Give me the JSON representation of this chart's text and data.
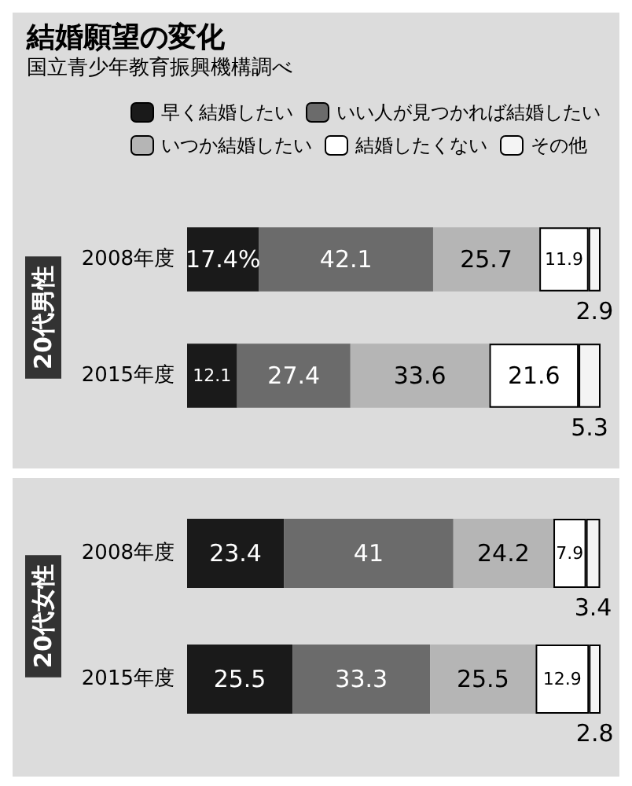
{
  "chart_data": [
    {
      "type": "bar",
      "orientation": "horizontal",
      "stacked": true,
      "title": "結婚願望の変化",
      "subtitle": "国立青少年教育振興機構調べ",
      "ylabel": "20代男性",
      "categories": [
        "2008年度",
        "2015年度"
      ],
      "legend": "top",
      "tick_labels": "y",
      "series": [
        {
          "name": "早く結婚したい",
          "color": "#1a1a1a",
          "values": [
            17.4,
            12.1
          ],
          "value_labels": [
            "17.4%",
            "12.1"
          ]
        },
        {
          "name": "いい人が見つかれば結婚したい",
          "color": "#6b6b6b",
          "values": [
            42.1,
            27.4
          ],
          "value_labels": [
            "42.1",
            "27.4"
          ]
        },
        {
          "name": "いつか結婚したい",
          "color": "#b5b5b5",
          "values": [
            25.7,
            33.6
          ],
          "value_labels": [
            "25.7",
            "33.6"
          ]
        },
        {
          "name": "結婚したくない",
          "color": "#ffffff",
          "values": [
            11.9,
            21.6
          ],
          "value_labels": [
            "11.9",
            "21.6"
          ]
        },
        {
          "name": "その他",
          "color": "#f4f4f4",
          "values": [
            2.9,
            5.3
          ],
          "value_labels": [
            "2.9",
            "5.3"
          ]
        }
      ]
    },
    {
      "type": "bar",
      "orientation": "horizontal",
      "stacked": true,
      "ylabel": "20代女性",
      "categories": [
        "2008年度",
        "2015年度"
      ],
      "tick_labels": "y",
      "series": [
        {
          "color": "#1a1a1a",
          "values": [
            23.4,
            25.5
          ],
          "value_labels": [
            "23.4",
            "25.5"
          ]
        },
        {
          "color": "#6b6b6b",
          "values": [
            41,
            33.3
          ],
          "value_labels": [
            "41",
            "33.3"
          ]
        },
        {
          "color": "#b5b5b5",
          "values": [
            24.2,
            25.5
          ],
          "value_labels": [
            "24.2",
            "25.5"
          ]
        },
        {
          "color": "#ffffff",
          "values": [
            7.9,
            12.9
          ],
          "value_labels": [
            "7.9",
            "12.9"
          ]
        },
        {
          "color": "#f4f4f4",
          "values": [
            3.4,
            2.8
          ],
          "value_labels": [
            "3.4",
            "2.8"
          ]
        }
      ]
    }
  ]
}
